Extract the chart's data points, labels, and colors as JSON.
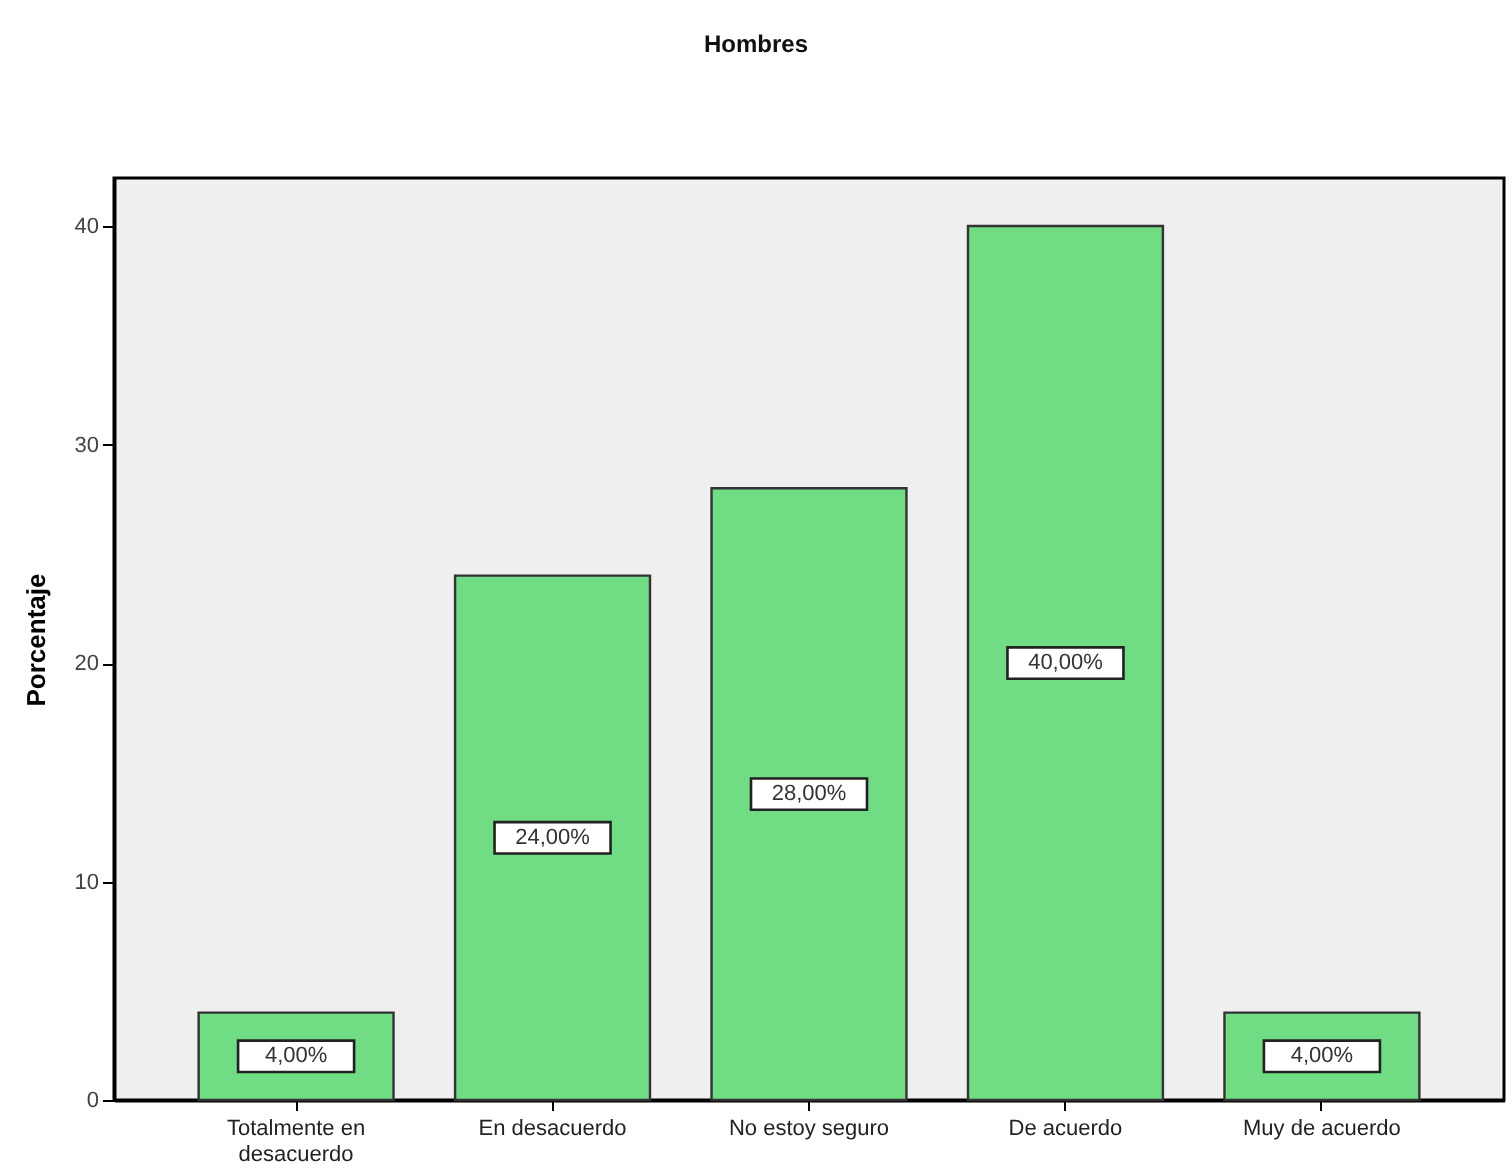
{
  "chart_data": {
    "type": "bar",
    "title": "Hombres",
    "ylabel": "Porcentaje",
    "categories": [
      "Totalmente en desacuerdo",
      "En desacuerdo",
      "No estoy seguro",
      "De acuerdo",
      "Muy de acuerdo"
    ],
    "values": [
      4,
      24,
      28,
      40,
      4
    ],
    "color": "#70dc84",
    "value_labels": [
      "4,00%",
      "24,00%",
      "28,00%",
      "40,00%",
      "4,00%"
    ],
    "ylim": [
      0,
      42.2
    ],
    "yticks": [
      0,
      10,
      20,
      30,
      40
    ]
  }
}
